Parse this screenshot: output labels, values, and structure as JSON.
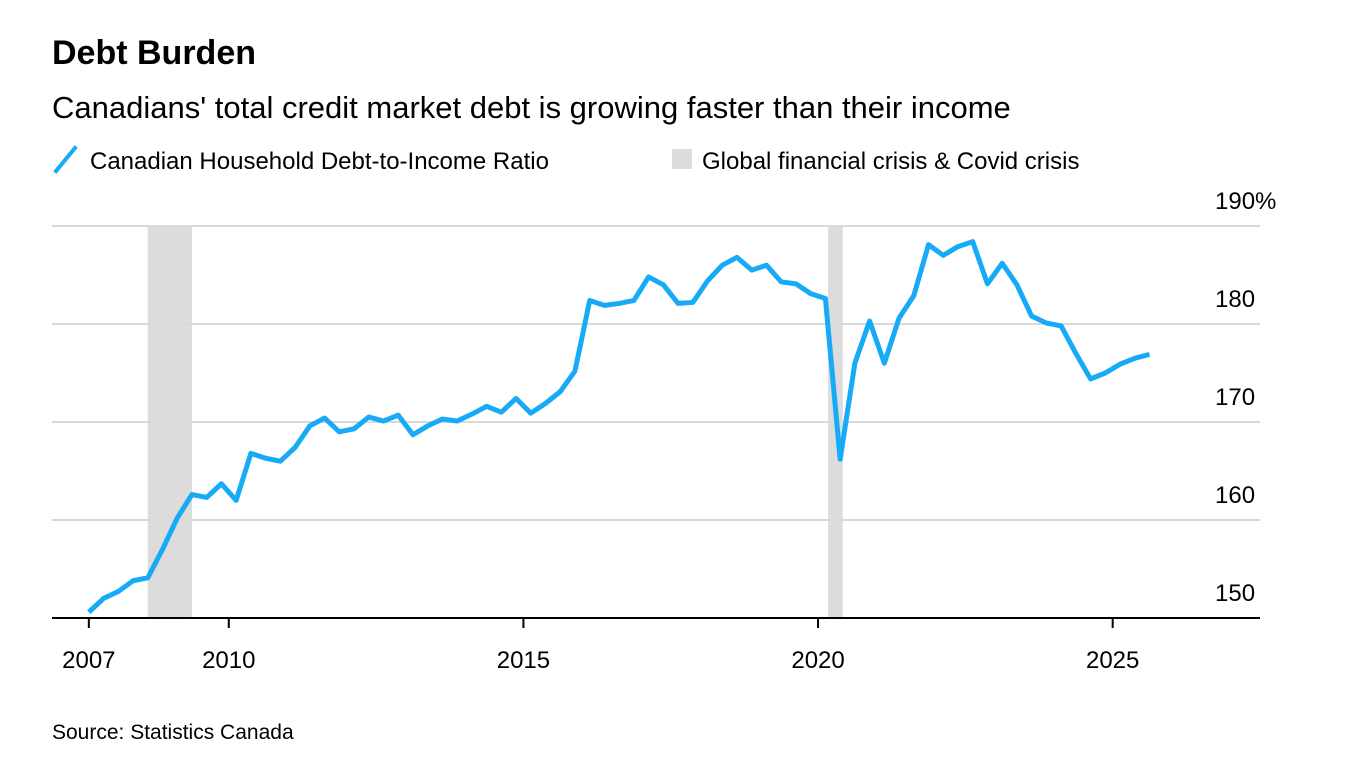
{
  "chart_data": {
    "type": "line",
    "title": "Debt Burden",
    "subtitle": "Canadians' total credit market debt is growing faster than their income",
    "source": "Source: Statistics Canada",
    "x_start": 2007.625,
    "x_step": 0.25,
    "series": [
      {
        "name": "Canadian Household Debt-to-Income Ratio",
        "color": "#17aaf7",
        "values": [
          150.6,
          152.0,
          152.7,
          153.8,
          154.1,
          157.0,
          160.2,
          162.6,
          162.3,
          163.7,
          162.0,
          166.8,
          166.3,
          166.0,
          167.4,
          169.6,
          170.4,
          169.0,
          169.3,
          170.5,
          170.1,
          170.7,
          168.7,
          169.6,
          170.3,
          170.1,
          170.8,
          171.6,
          171.0,
          172.4,
          170.9,
          171.9,
          173.1,
          175.2,
          182.4,
          181.9,
          182.1,
          182.4,
          184.8,
          184.0,
          182.1,
          182.2,
          184.4,
          186.0,
          186.8,
          185.5,
          186.0,
          184.3,
          184.1,
          183.1,
          182.6,
          166.2,
          176.0,
          180.3,
          176.0,
          180.6,
          182.9,
          188.1,
          187.0,
          187.9,
          188.4,
          184.1,
          186.2,
          184.0,
          180.8,
          180.1,
          179.8,
          177.0,
          174.4,
          175.0,
          175.9,
          176.5,
          176.9
        ]
      }
    ],
    "shaded_regions": {
      "name": "Global financial crisis & Covid crisis",
      "color": "#dcdcdc",
      "ranges": [
        [
          2008.625,
          2009.375
        ],
        [
          2020.17,
          2020.42
        ]
      ]
    },
    "xlim": [
      2007,
      2027.5
    ],
    "xticks": [
      {
        "value": 2007.625,
        "label": "2007"
      },
      2010,
      2015,
      2020,
      2025
    ],
    "ylim": [
      150,
      190
    ],
    "yticks": [
      150,
      160,
      170,
      180,
      {
        "value": 190,
        "label": "190%"
      }
    ],
    "grid": true
  }
}
